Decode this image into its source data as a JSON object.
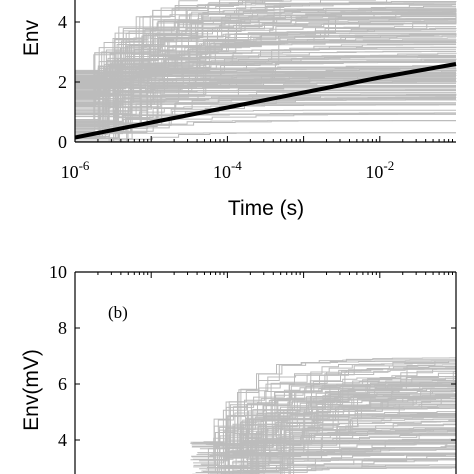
{
  "chart_data": [
    {
      "panel": "top",
      "type": "line",
      "xlabel": "Time (s)",
      "ylabel": "Env",
      "x_scale": "log",
      "xlim": [
        1e-06,
        0.1
      ],
      "ylim": [
        0,
        5
      ],
      "x_ticks": [
        {
          "value": 1e-06,
          "base": "10",
          "exp": "-6"
        },
        {
          "value": 0.0001,
          "base": "10",
          "exp": "-4"
        },
        {
          "value": 0.01,
          "base": "10",
          "exp": "-2"
        }
      ],
      "y_ticks": [
        "0",
        "2",
        "4"
      ],
      "series": [
        {
          "style": "ensemble",
          "color": "#bcbcbc",
          "count": 160,
          "description_values": {
            "start_range": [
              0,
              2.4
            ],
            "end_range": [
              0.3,
              5
            ]
          }
        },
        {
          "style": "mean",
          "color": "#000000",
          "x": [
            1e-06,
            1e-05,
            0.0001,
            0.001,
            0.01,
            0.1
          ],
          "y": [
            0.15,
            0.65,
            1.15,
            1.65,
            2.15,
            2.6
          ]
        }
      ],
      "grid": false
    },
    {
      "panel": "bottom",
      "label": "(b)",
      "type": "line",
      "ylabel": "Env(mV)",
      "ylim": [
        2.5,
        10
      ],
      "y_ticks": [
        "4",
        "6",
        "8",
        "10"
      ],
      "series": [
        {
          "style": "ensemble",
          "color": "#bcbcbc",
          "count": 120,
          "description_values": {
            "start_range": [
              2.5,
              4
            ],
            "end_range": [
              3,
              7
            ]
          }
        }
      ],
      "grid": false
    }
  ],
  "colors": {
    "ensemble": "#bcbcbc",
    "mean": "#000000",
    "axes": "#000000"
  }
}
